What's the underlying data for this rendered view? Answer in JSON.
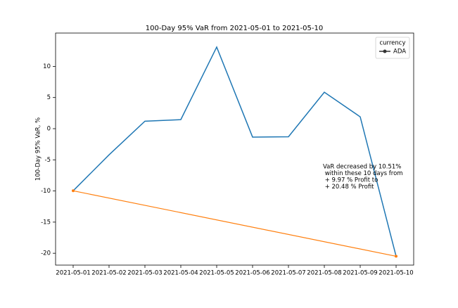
{
  "chart_data": {
    "type": "line",
    "title": "100-Day 95% VaR from 2021-05-01 to 2021-05-10",
    "ylabel": "100-Day 95% VaR, %",
    "categories": [
      "2021-05-01",
      "2021-05-02",
      "2021-05-03",
      "2021-05-04",
      "2021-05-05",
      "2021-05-06",
      "2021-05-07",
      "2021-05-08",
      "2021-05-09",
      "2021-05-10"
    ],
    "series": [
      {
        "name": "ADA",
        "color": "#1f77b4",
        "values": [
          -9.97,
          -4.2,
          1.2,
          1.45,
          13.1,
          -1.35,
          -1.3,
          5.85,
          1.9,
          -20.48
        ]
      }
    ],
    "trend": {
      "color": "#ff7f0e",
      "values": [
        -9.97,
        -20.48
      ]
    },
    "legend_title": "currency",
    "legend": "upper right",
    "annotation": [
      "VaR decreased by 10.51%",
      " within these 10 days from",
      " + 9.97 % Profit to",
      " + 20.48 % Profit"
    ],
    "ylim": [
      -21.9,
      15.35
    ],
    "yticks": [
      -20,
      -15,
      -10,
      -5,
      0,
      5,
      10
    ]
  }
}
